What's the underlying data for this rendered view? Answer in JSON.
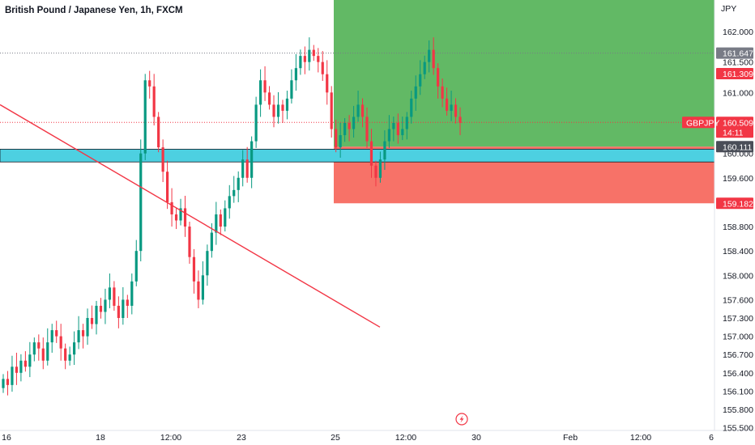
{
  "header": {
    "title": "British Pound / Japanese Yen, 1h, FXCM"
  },
  "colors": {
    "up": "#089981",
    "down": "#f23645",
    "profit_zone": "#4caf50",
    "loss_zone": "#f44336",
    "support_zone": "#4dd0e1",
    "trendline": "#f23645"
  },
  "icons": {
    "replay": "lightning-bolt-icon"
  },
  "chart_data": {
    "type": "candlestick",
    "symbol": "GBPJPY",
    "countdown": "14:11",
    "y_axis_unit": "JPY",
    "ylim": [
      155.5,
      162.5
    ],
    "y_ticks": [
      "162.000",
      "161.500",
      "161.000",
      "160.000",
      "159.600",
      "158.800",
      "158.400",
      "158.000",
      "157.600",
      "157.300",
      "157.000",
      "156.700",
      "156.400",
      "156.100",
      "155.800",
      "155.500"
    ],
    "y_tick_values": [
      162.0,
      161.5,
      161.0,
      160.0,
      159.6,
      158.8,
      158.4,
      158.0,
      157.6,
      157.3,
      157.0,
      156.7,
      156.4,
      156.1,
      155.8,
      155.5
    ],
    "x_ticks": [
      "16",
      "18",
      "12:00",
      "23",
      "25",
      "12:00",
      "30",
      "Feb",
      "12:00",
      "6"
    ],
    "price_labels": {
      "high_line": "161.647",
      "take_profit": "161.309",
      "current": "160.509",
      "entry": "160.111",
      "stop_loss": "159.182"
    },
    "price_values": {
      "high_line": 161.647,
      "take_profit": 161.309,
      "current": 160.509,
      "entry": 160.111,
      "stop_loss": 159.182
    },
    "support_zone": [
      159.86,
      160.07
    ],
    "trendline": {
      "from": [
        "15",
        160.8
      ],
      "to": [
        "26 12:00",
        157.15
      ]
    },
    "closes": [
      156.3,
      156.2,
      156.5,
      156.4,
      156.6,
      156.5,
      156.7,
      156.9,
      156.8,
      156.6,
      156.9,
      157.1,
      157.0,
      156.8,
      156.6,
      156.7,
      156.9,
      157.1,
      157.0,
      157.3,
      157.2,
      157.5,
      157.4,
      157.6,
      157.8,
      157.5,
      157.3,
      157.6,
      157.5,
      157.9,
      158.4,
      160.0,
      161.2,
      161.1,
      160.6,
      160.1,
      159.7,
      159.2,
      159.0,
      158.9,
      159.1,
      158.8,
      158.3,
      157.9,
      157.6,
      158.0,
      158.4,
      158.7,
      159.0,
      158.8,
      159.1,
      159.3,
      159.4,
      159.6,
      159.9,
      159.6,
      160.2,
      160.8,
      161.2,
      161.0,
      160.8,
      160.6,
      160.8,
      160.7,
      160.9,
      161.2,
      161.4,
      161.6,
      161.5,
      161.7,
      161.6,
      161.5,
      161.3,
      161.0,
      160.4,
      160.1,
      160.3,
      160.5,
      160.4,
      160.6,
      160.8,
      160.6,
      160.2,
      159.8,
      159.6,
      159.9,
      160.2,
      160.4,
      160.5,
      160.3,
      160.4,
      160.6,
      160.9,
      161.1,
      161.3,
      161.5,
      161.7,
      161.4,
      161.1,
      160.9,
      160.7,
      160.8,
      160.6,
      160.5
    ]
  }
}
